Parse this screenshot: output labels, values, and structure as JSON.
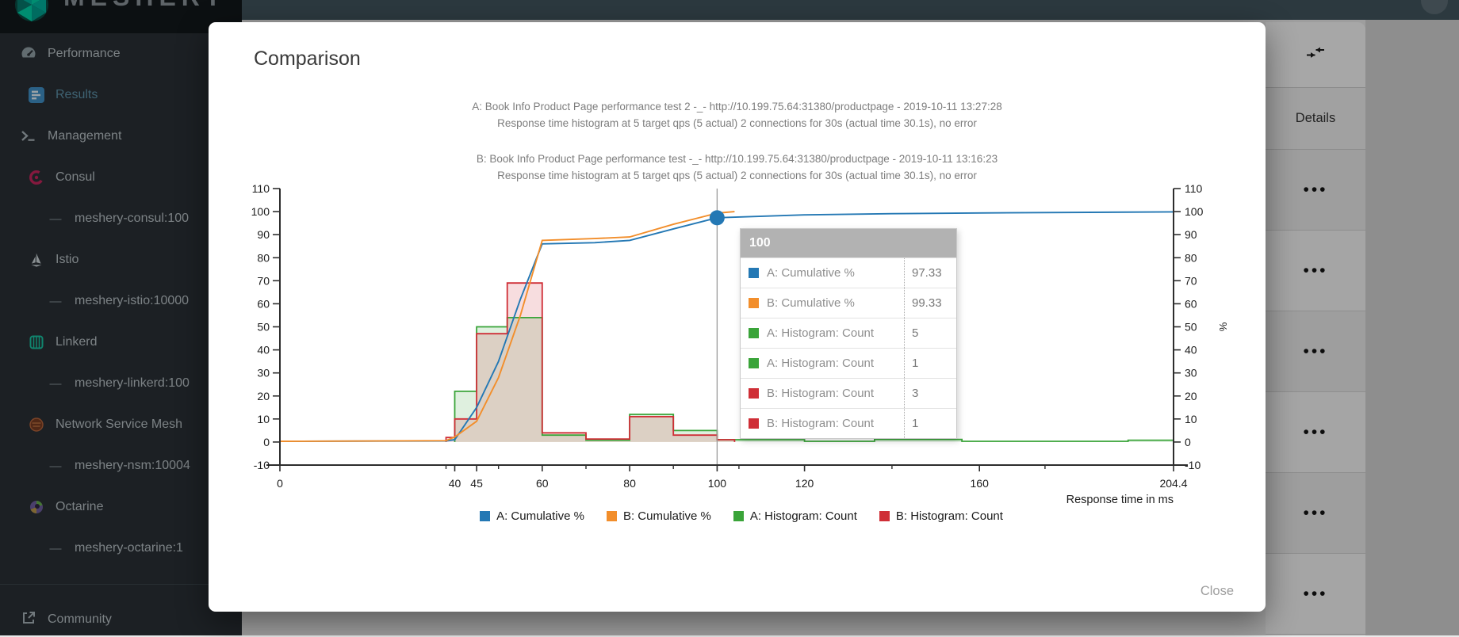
{
  "logo": {
    "text": "MESHERY"
  },
  "sidebar": {
    "items": [
      {
        "label": "Performance",
        "icon": "speedometer-icon",
        "indent": 0
      },
      {
        "label": "Results",
        "icon": "poll-icon",
        "indent": 1,
        "active": true
      },
      {
        "label": "Management",
        "icon": "terminal-icon",
        "indent": 0
      },
      {
        "label": "Consul",
        "icon": "consul-icon",
        "indent": 1
      },
      {
        "label": "meshery-consul:100",
        "icon": "dash-icon",
        "indent": 2
      },
      {
        "label": "Istio",
        "icon": "istio-icon",
        "indent": 1
      },
      {
        "label": "meshery-istio:10000",
        "icon": "dash-icon",
        "indent": 2
      },
      {
        "label": "Linkerd",
        "icon": "linkerd-icon",
        "indent": 1
      },
      {
        "label": "meshery-linkerd:100",
        "icon": "dash-icon",
        "indent": 2
      },
      {
        "label": "Network Service Mesh",
        "icon": "nsm-icon",
        "indent": 1
      },
      {
        "label": "meshery-nsm:10004",
        "icon": "dash-icon",
        "indent": 2
      },
      {
        "label": "Octarine",
        "icon": "octarine-icon",
        "indent": 1
      },
      {
        "label": "meshery-octarine:1",
        "icon": "dash-icon",
        "indent": 2
      }
    ],
    "footer": {
      "label": "Community",
      "icon": "external-link-icon"
    }
  },
  "background_panel": {
    "details_header": "Details",
    "toolbar_icon": "collapse-icon",
    "row_count": 6,
    "more_icon": "more-horiz-icon"
  },
  "modal": {
    "title": "Comparison",
    "close_label": "Close",
    "chart_data": {
      "type": "line+histogram",
      "title_a_1": "A: Book Info Product Page performance test 2 -_- http://10.199.75.64:31380/productpage - 2019-10-11 13:27:28",
      "title_a_2": "Response time histogram at 5 target qps (5 actual) 2 connections for 30s (actual time 30.1s), no error",
      "title_b_1": "B: Book Info Product Page performance test -_- http://10.199.75.64:31380/productpage - 2019-10-11 13:16:23",
      "title_b_2": "Response time histogram at 5 target qps (5 actual) 2 connections for 30s (actual time 30.1s), no error",
      "xlabel": "Response time in ms",
      "right_axis_label": "%",
      "xlim": [
        0,
        204.4
      ],
      "ylim": [
        -10,
        110
      ],
      "x_ticks": [
        0,
        40,
        45,
        60,
        80,
        100,
        120,
        160,
        204.4
      ],
      "x_minor_ticks": [
        38,
        50,
        70,
        90,
        105,
        140,
        175
      ],
      "y_ticks": [
        -10,
        0,
        10,
        20,
        30,
        40,
        50,
        60,
        70,
        80,
        90,
        100,
        110
      ],
      "grid": false,
      "legend_position": "bottom-center",
      "crosshair_x": 100,
      "marker": {
        "x": 100,
        "y": 97.33,
        "color": "#2478b4"
      },
      "series": [
        {
          "name": "A: Cumulative %",
          "type": "line",
          "color": "#2478b4",
          "points": [
            [
              0,
              0.3
            ],
            [
              38,
              0.5
            ],
            [
              40,
              1
            ],
            [
              45,
              15
            ],
            [
              50,
              35
            ],
            [
              55,
              62
            ],
            [
              60,
              86
            ],
            [
              72,
              86.5
            ],
            [
              80,
              87.5
            ],
            [
              90,
              92.5
            ],
            [
              100,
              97.33
            ],
            [
              120,
              98.6
            ],
            [
              140,
              99.1
            ],
            [
              160,
              99.4
            ],
            [
              204.4,
              99.9
            ]
          ]
        },
        {
          "name": "B: Cumulative %",
          "type": "line",
          "color": "#f28e2b",
          "points": [
            [
              0,
              0.3
            ],
            [
              38,
              0.6
            ],
            [
              40,
              2.2
            ],
            [
              45,
              9
            ],
            [
              50,
              28
            ],
            [
              55,
              55
            ],
            [
              60,
              87.5
            ],
            [
              72,
              88.3
            ],
            [
              80,
              89
            ],
            [
              90,
              94.5
            ],
            [
              100,
              99.33
            ],
            [
              104,
              100
            ]
          ]
        },
        {
          "name": "A: Histogram: Count",
          "type": "histogram",
          "color": "#3aa439",
          "bars": [
            [
              40,
              45,
              22
            ],
            [
              45,
              52,
              50
            ],
            [
              52,
              60,
              54
            ],
            [
              60,
              70,
              3
            ],
            [
              70,
              80,
              0.8
            ],
            [
              80,
              90,
              12
            ],
            [
              90,
              100,
              5
            ],
            [
              100,
              120,
              1
            ],
            [
              120,
              136,
              0.3
            ],
            [
              136,
              156,
              1.1
            ],
            [
              156,
              194,
              0.3
            ],
            [
              194,
              204.4,
              0.8
            ]
          ]
        },
        {
          "name": "B: Histogram: Count",
          "type": "histogram",
          "color": "#cf2e36",
          "bars": [
            [
              38,
              40,
              2
            ],
            [
              40,
              45,
              10
            ],
            [
              45,
              52,
              47
            ],
            [
              52,
              60,
              69
            ],
            [
              60,
              70,
              4
            ],
            [
              70,
              80,
              1.3
            ],
            [
              80,
              90,
              11
            ],
            [
              90,
              100,
              3
            ],
            [
              100,
              104,
              1
            ]
          ]
        }
      ],
      "tooltip": {
        "header": "100",
        "rows": [
          {
            "series": "A: Cumulative %",
            "color": "#2478b4",
            "value": "97.33"
          },
          {
            "series": "B: Cumulative %",
            "color": "#f28e2b",
            "value": "99.33"
          },
          {
            "series": "A: Histogram: Count",
            "color": "#3aa439",
            "value": "5"
          },
          {
            "series": "A: Histogram: Count",
            "color": "#3aa439",
            "value": "1"
          },
          {
            "series": "B: Histogram: Count",
            "color": "#cf2e36",
            "value": "3"
          },
          {
            "series": "B: Histogram: Count",
            "color": "#cf2e36",
            "value": "1"
          }
        ]
      }
    }
  }
}
